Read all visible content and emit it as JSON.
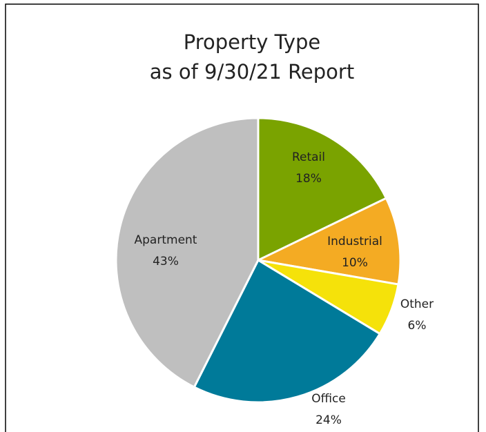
{
  "chart_data": {
    "type": "pie",
    "title": "Property Type",
    "subtitle": "as of 9/30/21 Report",
    "categories": [
      "Retail",
      "Industrial",
      "Other",
      "Office",
      "Apartment"
    ],
    "values": [
      18,
      10,
      6,
      24,
      43
    ],
    "value_labels": [
      "18%",
      "10%",
      "6%",
      "24%",
      "43%"
    ],
    "colors": [
      "#7aa300",
      "#f4ab23",
      "#f5e20a",
      "#007a99",
      "#bfbfbf"
    ]
  }
}
